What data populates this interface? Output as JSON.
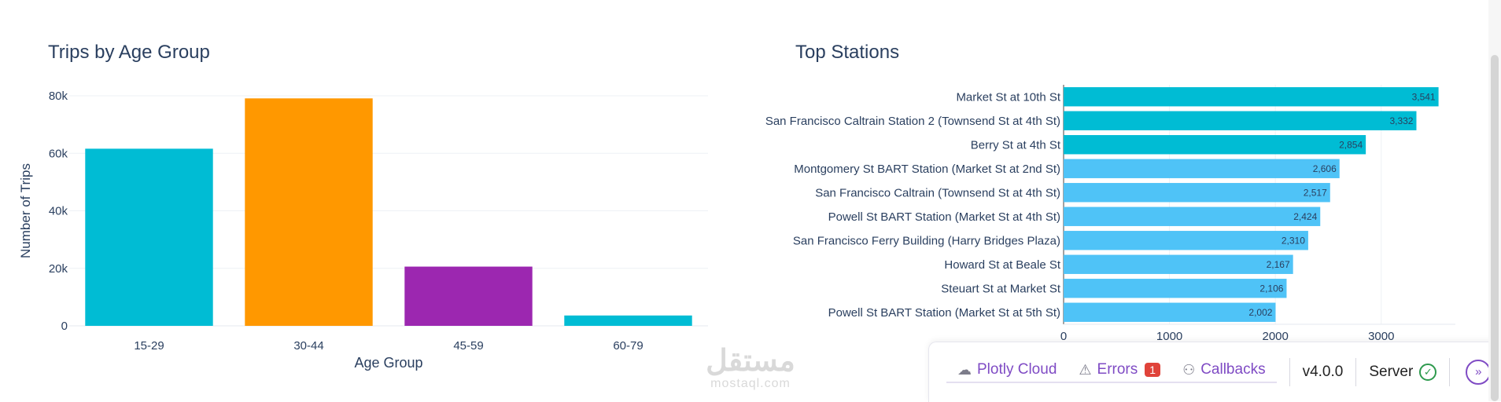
{
  "charts": {
    "age_title": "Trips by Age Group",
    "stations_title": "Top Stations"
  },
  "chart_data": [
    {
      "type": "bar",
      "title": "Trips by Age Group",
      "xlabel": "Age Group",
      "ylabel": "Number of Trips",
      "categories": [
        "15-29",
        "30-44",
        "45-59",
        "60-79"
      ],
      "values": [
        61600,
        79100,
        20600,
        3600
      ],
      "colors": [
        "#00bcd4",
        "#ff9800",
        "#9c27b0",
        "#00bcd4"
      ],
      "ylim": [
        0,
        80000
      ],
      "yticks": [
        0,
        20000,
        40000,
        60000,
        80000
      ],
      "ytick_labels": [
        "0",
        "20k",
        "40k",
        "60k",
        "80k"
      ],
      "grid": true
    },
    {
      "type": "bar",
      "orientation": "horizontal",
      "title": "Top Stations",
      "categories": [
        "Market St at 10th St",
        "San Francisco Caltrain Station 2  (Townsend St at 4th St)",
        "Berry St at 4th St",
        "Montgomery St BART Station (Market St at 2nd St)",
        "San Francisco Caltrain (Townsend St at 4th St)",
        "Powell St BART Station (Market St at 4th St)",
        "San Francisco Ferry Building (Harry Bridges Plaza)",
        "Howard St at Beale St",
        "Steuart St at Market St",
        "Powell St BART Station (Market St at 5th St)"
      ],
      "values": [
        3541,
        3332,
        2854,
        2606,
        2517,
        2424,
        2310,
        2167,
        2106,
        2002
      ],
      "value_labels": [
        "3,541",
        "3,332",
        "2,854",
        "2,606",
        "2,517",
        "2,424",
        "2,310",
        "2,167",
        "2,106",
        "2,002"
      ],
      "colors": [
        "#00bcd4",
        "#00bcd4",
        "#00bcd4",
        "#4fc3f7",
        "#4fc3f7",
        "#4fc3f7",
        "#4fc3f7",
        "#4fc3f7",
        "#4fc3f7",
        "#4fc3f7"
      ],
      "xlim": [
        0,
        3700
      ],
      "xticks": [
        0,
        1000,
        2000,
        3000
      ],
      "xtick_labels": [
        "0",
        "1000",
        "2000",
        "3000"
      ],
      "grid": true
    }
  ],
  "devtools": {
    "cloud_label": "Plotly Cloud",
    "errors_label": "Errors",
    "errors_count": "1",
    "callbacks_label": "Callbacks",
    "version": "v4.0.0",
    "server_label": "Server",
    "cloud_icon": "cloud-off-icon",
    "errors_icon": "warning-icon",
    "callbacks_icon": "graph-icon",
    "server_icon": "check-circle-icon",
    "expand_icon": "chevron-right-icon"
  },
  "watermark": {
    "logo": "مستقل",
    "site": "mostaql.com"
  }
}
